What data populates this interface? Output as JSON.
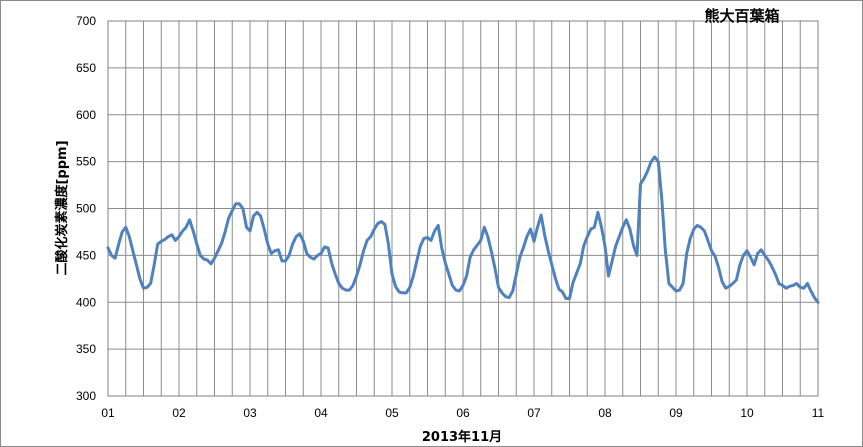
{
  "chart_data": {
    "type": "line",
    "title": "熊大百葉箱",
    "xlabel": "2013年11月",
    "ylabel": "二酸化炭素濃度[ppm]",
    "ylim": [
      300,
      700
    ],
    "yticks": [
      300,
      350,
      400,
      450,
      500,
      550,
      600,
      650,
      700
    ],
    "xlim": [
      0,
      10
    ],
    "xticks": [
      0,
      1,
      2,
      3,
      4,
      5,
      6,
      7,
      8,
      9,
      10
    ],
    "xtick_labels": [
      "01",
      "02",
      "03",
      "04",
      "05",
      "06",
      "07",
      "08",
      "09",
      "10",
      "11"
    ],
    "minor_gridlines_per_day": 4,
    "grid": true,
    "legend": "none",
    "line_color": "#4f81bd",
    "series": [
      {
        "x": [
          0.0,
          0.05,
          0.1,
          0.15,
          0.2,
          0.25,
          0.3,
          0.35,
          0.4,
          0.45,
          0.5,
          0.55,
          0.6,
          0.65,
          0.7,
          0.75,
          0.8,
          0.85,
          0.9,
          0.95,
          1.0,
          1.05,
          1.1,
          1.15,
          1.2,
          1.25,
          1.3,
          1.35,
          1.4,
          1.45,
          1.5,
          1.55,
          1.6,
          1.65,
          1.7,
          1.75,
          1.8,
          1.85,
          1.9,
          1.95,
          2.0,
          2.05,
          2.1,
          2.15,
          2.2,
          2.25,
          2.3,
          2.35,
          2.4,
          2.45,
          2.5,
          2.55,
          2.6,
          2.65,
          2.7,
          2.75,
          2.8,
          2.85,
          2.9,
          2.95,
          3.0,
          3.05,
          3.1,
          3.15,
          3.2,
          3.25,
          3.3,
          3.35,
          3.4,
          3.45,
          3.5,
          3.55,
          3.6,
          3.65,
          3.7,
          3.75,
          3.8,
          3.85,
          3.9,
          3.95,
          4.0,
          4.05,
          4.1,
          4.15,
          4.2,
          4.25,
          4.3,
          4.35,
          4.4,
          4.45,
          4.5,
          4.55,
          4.6,
          4.65,
          4.7,
          4.75,
          4.8,
          4.85,
          4.9,
          4.95,
          5.0,
          5.05,
          5.1,
          5.15,
          5.2,
          5.25,
          5.3,
          5.35,
          5.4,
          5.45,
          5.5,
          5.55,
          5.6,
          5.65,
          5.7,
          5.75,
          5.8,
          5.85,
          5.9,
          5.95,
          6.0,
          6.05,
          6.1,
          6.15,
          6.2,
          6.25,
          6.3,
          6.35,
          6.4,
          6.45,
          6.5,
          6.55,
          6.6,
          6.65,
          6.7,
          6.75,
          6.8,
          6.85,
          6.9,
          6.95,
          7.0,
          7.05,
          7.1,
          7.15,
          7.2,
          7.25,
          7.3,
          7.35,
          7.4,
          7.45,
          7.5,
          7.55,
          7.6,
          7.65,
          7.7,
          7.75,
          7.8,
          7.85,
          7.9,
          7.95,
          8.0,
          8.05,
          8.1,
          8.15,
          8.2,
          8.25,
          8.3,
          8.35,
          8.4,
          8.45,
          8.5,
          8.55,
          8.6,
          8.65,
          8.7,
          8.75,
          8.8,
          8.85,
          8.9,
          8.95,
          9.0,
          9.05,
          9.1,
          9.15,
          9.2,
          9.25,
          9.3,
          9.35,
          9.4,
          9.45,
          9.5,
          9.55,
          9.6,
          9.65,
          9.7,
          9.75,
          9.8,
          9.85,
          9.9,
          9.95,
          10.0
        ],
        "values": [
          458,
          450,
          447,
          462,
          475,
          480,
          470,
          455,
          440,
          425,
          415,
          416,
          420,
          440,
          462,
          465,
          467,
          470,
          472,
          466,
          470,
          476,
          480,
          488,
          476,
          462,
          450,
          446,
          445,
          441,
          447,
          455,
          463,
          475,
          490,
          498,
          505,
          505,
          500,
          480,
          476,
          492,
          496,
          492,
          478,
          462,
          452,
          455,
          456,
          444,
          444,
          450,
          462,
          470,
          473,
          465,
          452,
          448,
          446,
          450,
          452,
          459,
          458,
          442,
          430,
          420,
          415,
          413,
          413,
          418,
          428,
          440,
          455,
          466,
          470,
          478,
          484,
          486,
          483,
          462,
          430,
          417,
          411,
          410,
          410,
          416,
          428,
          444,
          460,
          468,
          469,
          466,
          476,
          482,
          458,
          442,
          430,
          418,
          413,
          412,
          418,
          428,
          448,
          456,
          461,
          466,
          480,
          470,
          454,
          436,
          416,
          410,
          406,
          405,
          412,
          430,
          448,
          458,
          470,
          478,
          465,
          480,
          493,
          472,
          455,
          440,
          426,
          414,
          411,
          404,
          404,
          421,
          431,
          441,
          460,
          470,
          478,
          480,
          496,
          480,
          460,
          428,
          444,
          460,
          470,
          480,
          488,
          478,
          461,
          450,
          526,
          532,
          540,
          550,
          555,
          550,
          510,
          456,
          420,
          416,
          412,
          413,
          420,
          452,
          468,
          478,
          482,
          480,
          476,
          466,
          455,
          449,
          437,
          422,
          415,
          417,
          420,
          424,
          440,
          450,
          455,
          448,
          440,
          452,
          456,
          450,
          445,
          438,
          430,
          420,
          418,
          415,
          417,
          418,
          420,
          416,
          415,
          420,
          412,
          405,
          400
        ]
      }
    ]
  }
}
